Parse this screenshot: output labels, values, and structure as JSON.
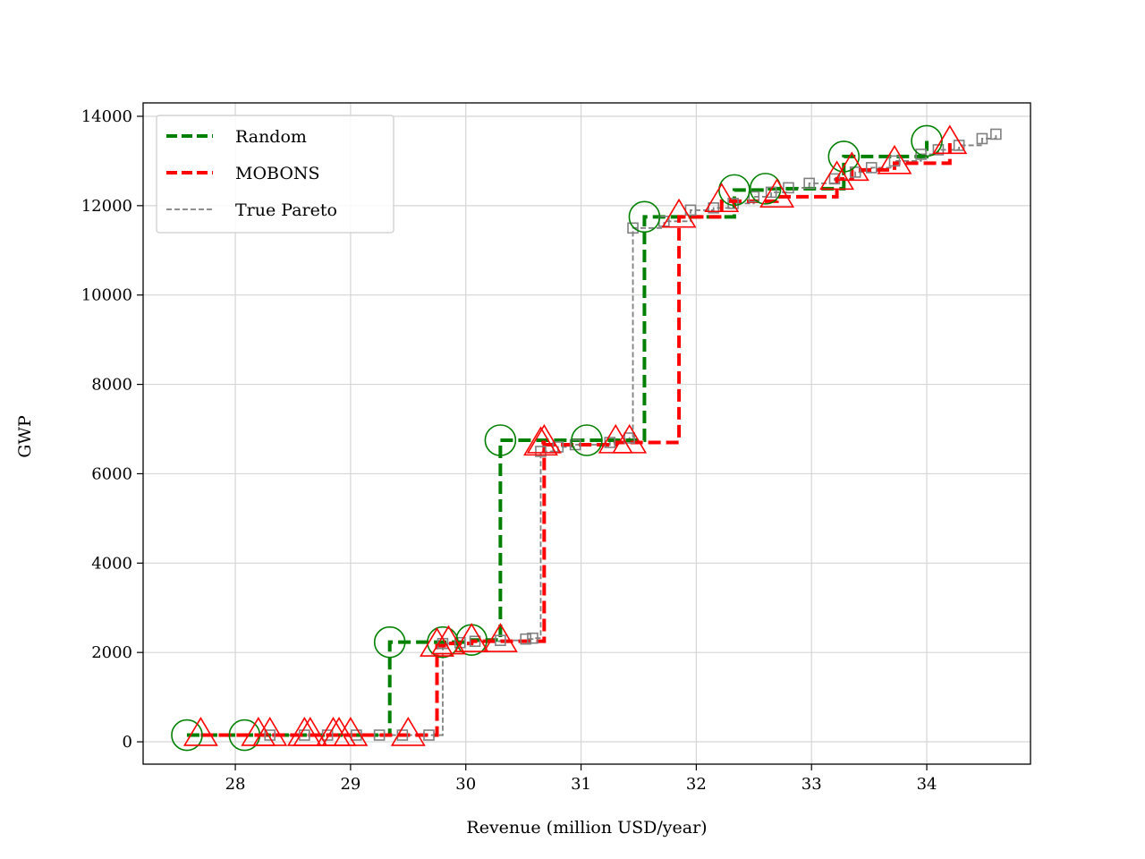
{
  "chart_data": {
    "type": "line",
    "title": "",
    "xlabel": "Revenue (million USD/year)",
    "ylabel": "GWP",
    "xlim": [
      27.2,
      34.9
    ],
    "ylim": [
      -500,
      14300
    ],
    "xticks": [
      28,
      29,
      30,
      31,
      32,
      33,
      34
    ],
    "yticks": [
      0,
      2000,
      4000,
      6000,
      8000,
      10000,
      12000,
      14000
    ],
    "grid": true,
    "legend_position": "top-left",
    "series": [
      {
        "name": "Random",
        "color": "#008000",
        "marker": "circle",
        "line_style": "dashed-step",
        "x": [
          27.58,
          28.08,
          29.34,
          29.8,
          30.05,
          30.3,
          31.05,
          31.55,
          32.33,
          32.6,
          33.28,
          34.0
        ],
        "y": [
          150,
          150,
          2230,
          2230,
          2280,
          6750,
          6750,
          11750,
          12350,
          12380,
          13100,
          13450
        ]
      },
      {
        "name": "MOBONS",
        "color": "#ff0000",
        "marker": "triangle",
        "line_style": "dashed-step",
        "x": [
          27.7,
          28.2,
          28.3,
          28.6,
          28.65,
          28.85,
          28.9,
          29.0,
          29.5,
          29.75,
          29.85,
          30.05,
          30.3,
          30.68,
          30.65,
          31.3,
          31.42,
          31.85,
          32.22,
          32.7,
          33.22,
          33.35,
          33.72,
          34.2
        ],
        "y": [
          150,
          150,
          150,
          150,
          150,
          150,
          150,
          150,
          150,
          2150,
          2200,
          2250,
          2250,
          6700,
          6650,
          6700,
          6700,
          11750,
          12100,
          12200,
          12600,
          12800,
          12950,
          13400
        ]
      },
      {
        "name": "True Pareto",
        "color": "#808080",
        "marker": "square",
        "line_style": "dashed-step-thin",
        "x": [
          28.3,
          28.6,
          28.8,
          29.05,
          29.25,
          29.45,
          29.68,
          29.8,
          29.95,
          30.08,
          30.3,
          30.52,
          30.58,
          30.65,
          30.8,
          30.95,
          31.25,
          31.42,
          31.45,
          31.72,
          31.95,
          32.15,
          32.32,
          32.5,
          32.65,
          32.8,
          32.98,
          33.2,
          33.38,
          33.52,
          33.72,
          33.95,
          34.1,
          34.28,
          34.48,
          34.6
        ],
        "y": [
          150,
          150,
          150,
          150,
          150,
          150,
          150,
          2200,
          2220,
          2250,
          2270,
          2300,
          2320,
          6500,
          6600,
          6650,
          6700,
          6800,
          11500,
          11650,
          11900,
          11950,
          12050,
          12200,
          12300,
          12400,
          12500,
          12600,
          12750,
          12850,
          13000,
          13150,
          13250,
          13350,
          13500,
          13600
        ]
      }
    ]
  }
}
